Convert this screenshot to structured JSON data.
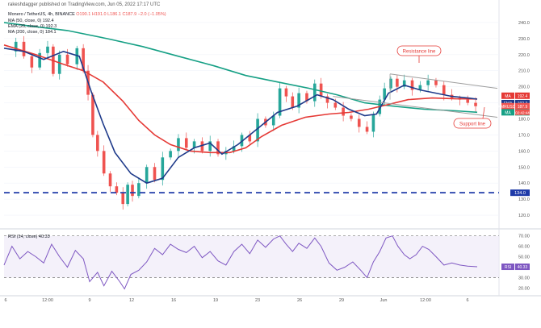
{
  "header": {
    "publisher": "rakeshdagger published on TradingView.com, Jun 05, 2022 17:17 UTC",
    "pair": "Monero / TetherUS, 4h, BINANCE",
    "ohlc": "O190.1 H191.0 L186.1 C187.9 −2.0 (−1.05%)",
    "indicators": [
      "MA (50, close, 0)  192.4",
      "EMA (20, close, 0)  192.3",
      "MA (200, close, 0)  184.1"
    ],
    "rsi_label": "RSI (14, close)  40.33"
  },
  "colors": {
    "up": "#26a69a",
    "down": "#ef5350",
    "ma50": "#e53935",
    "ema20": "#1e3a8a",
    "ma200": "#16a085",
    "rsi": "#7e57c2",
    "support": "#1e3aa8",
    "annotation": "#e53935",
    "triangle": "#9e9e9e"
  },
  "chart_data": [
    {
      "type": "candlestick",
      "title": "Monero / TetherUS, 4h, BINANCE",
      "x": [
        "6",
        "12:00",
        "9",
        "12",
        "16",
        "19",
        "23",
        "26",
        "29",
        "Jun",
        "12:00",
        "6"
      ],
      "y_ticks": [
        120.0,
        130.0,
        140.0,
        150.0,
        160.0,
        170.0,
        180.0,
        190.0,
        200.0,
        210.0,
        220.0,
        230.0,
        240.0
      ],
      "ylim": [
        112,
        248
      ],
      "price_labels": [
        {
          "name": "MA",
          "value": 192.4
        },
        {
          "name": "EMA",
          "value": 192.3
        },
        {
          "name": "XMRUSDT",
          "value": 187.9
        },
        {
          "name": "MA",
          "value": 184.1
        },
        {
          "name": "countdown",
          "value": "02:42:44"
        }
      ],
      "horizontal_line": {
        "label": "134.0",
        "value": 134.0
      },
      "annotations": [
        "Resistance line",
        "Support line"
      ],
      "series": [
        {
          "name": "MA (200)",
          "points": [
            [
              0,
              240
            ],
            [
              30,
              238
            ],
            [
              80,
              235
            ],
            [
              130,
              230
            ],
            [
              175,
              225
            ],
            [
              220,
              219
            ],
            [
              265,
              213
            ],
            [
              305,
              207
            ],
            [
              345,
              203
            ],
            [
              385,
              199
            ],
            [
              420,
              195
            ],
            [
              455,
              190
            ],
            [
              490,
              188
            ],
            [
              530,
              186
            ],
            [
              570,
              185
            ],
            [
              597,
              184.1
            ]
          ]
        },
        {
          "name": "MA (50)",
          "points": [
            [
              0,
              226
            ],
            [
              40,
              220
            ],
            [
              75,
              214
            ],
            [
              100,
              210
            ],
            [
              125,
              203
            ],
            [
              150,
              191
            ],
            [
              170,
              179
            ],
            [
              190,
              170
            ],
            [
              210,
              164
            ],
            [
              235,
              160
            ],
            [
              260,
              159
            ],
            [
              285,
              159
            ],
            [
              305,
              162
            ],
            [
              325,
              169
            ],
            [
              350,
              176
            ],
            [
              380,
              181
            ],
            [
              410,
              183
            ],
            [
              435,
              184
            ],
            [
              460,
              186
            ],
            [
              485,
              189
            ],
            [
              510,
              192
            ],
            [
              540,
              193
            ],
            [
              570,
              192.5
            ],
            [
              597,
              192.4
            ]
          ]
        },
        {
          "name": "EMA (20)",
          "points": [
            [
              0,
              224
            ],
            [
              25,
              222
            ],
            [
              50,
              217
            ],
            [
              75,
              222
            ],
            [
              95,
              219
            ],
            [
              110,
              197
            ],
            [
              125,
              177
            ],
            [
              140,
              159
            ],
            [
              160,
              146
            ],
            [
              180,
              140
            ],
            [
              200,
              143
            ],
            [
              220,
              156
            ],
            [
              240,
              162
            ],
            [
              260,
              165
            ],
            [
              275,
              158
            ],
            [
              295,
              164
            ],
            [
              320,
              174
            ],
            [
              345,
              184
            ],
            [
              370,
              188
            ],
            [
              395,
              195
            ],
            [
              415,
              192
            ],
            [
              435,
              186
            ],
            [
              455,
              182
            ],
            [
              470,
              183
            ],
            [
              485,
              196
            ],
            [
              505,
              201
            ],
            [
              525,
              198
            ],
            [
              545,
              196
            ],
            [
              565,
              194
            ],
            [
              585,
              193
            ],
            [
              597,
              192.3
            ]
          ]
        }
      ],
      "candles_approx": {
        "close_path": [
          [
            5,
            222
          ],
          [
            15,
            228
          ],
          [
            25,
            219
          ],
          [
            35,
            212
          ],
          [
            45,
            221
          ],
          [
            55,
            225
          ],
          [
            62,
            208
          ],
          [
            70,
            220
          ],
          [
            80,
            214
          ],
          [
            92,
            224
          ],
          [
            100,
            210
          ],
          [
            106,
            195
          ],
          [
            112,
            170
          ],
          [
            118,
            160
          ],
          [
            126,
            146
          ],
          [
            134,
            138
          ],
          [
            142,
            134
          ],
          [
            150,
            127
          ],
          [
            156,
            139
          ],
          [
            162,
            132
          ],
          [
            170,
            140
          ],
          [
            180,
            150
          ],
          [
            190,
            142
          ],
          [
            200,
            156
          ],
          [
            210,
            160
          ],
          [
            220,
            168
          ],
          [
            230,
            162
          ],
          [
            240,
            166
          ],
          [
            250,
            160
          ],
          [
            260,
            166
          ],
          [
            270,
            158
          ],
          [
            280,
            160
          ],
          [
            290,
            163
          ],
          [
            300,
            170
          ],
          [
            310,
            166
          ],
          [
            320,
            180
          ],
          [
            330,
            176
          ],
          [
            340,
            182
          ],
          [
            348,
            199
          ],
          [
            356,
            194
          ],
          [
            364,
            187
          ],
          [
            372,
            196
          ],
          [
            382,
            191
          ],
          [
            392,
            202
          ],
          [
            400,
            194
          ],
          [
            408,
            190
          ],
          [
            418,
            187
          ],
          [
            428,
            182
          ],
          [
            438,
            180
          ],
          [
            448,
            175
          ],
          [
            458,
            172
          ],
          [
            466,
            183
          ],
          [
            474,
            192
          ],
          [
            480,
            199
          ],
          [
            488,
            205
          ],
          [
            496,
            200
          ],
          [
            505,
            204
          ],
          [
            515,
            198
          ],
          [
            525,
            201
          ],
          [
            535,
            204
          ],
          [
            545,
            201
          ],
          [
            555,
            195
          ],
          [
            565,
            193
          ],
          [
            575,
            192
          ],
          [
            585,
            190
          ],
          [
            595,
            187.9
          ]
        ]
      },
      "trendlines": {
        "resistance": [
          [
            487,
            208
          ],
          [
            617,
            199
          ]
        ],
        "support": [
          [
            415,
            194
          ],
          [
            617,
            181
          ]
        ]
      }
    },
    {
      "type": "line",
      "title": "RSI (14, close)",
      "y_ticks": [
        20.0,
        30.0,
        40.0,
        50.0,
        60.0,
        70.0
      ],
      "ylim": [
        14,
        76
      ],
      "value": 40.33,
      "bands": [
        30,
        70
      ],
      "points": [
        [
          0,
          42
        ],
        [
          10,
          60
        ],
        [
          20,
          48
        ],
        [
          30,
          55
        ],
        [
          40,
          50
        ],
        [
          50,
          44
        ],
        [
          60,
          62
        ],
        [
          70,
          50
        ],
        [
          80,
          40
        ],
        [
          90,
          56
        ],
        [
          100,
          48
        ],
        [
          108,
          26
        ],
        [
          118,
          35
        ],
        [
          126,
          22
        ],
        [
          136,
          36
        ],
        [
          146,
          26
        ],
        [
          152,
          19
        ],
        [
          160,
          33
        ],
        [
          170,
          37
        ],
        [
          180,
          45
        ],
        [
          190,
          58
        ],
        [
          200,
          52
        ],
        [
          210,
          62
        ],
        [
          220,
          57
        ],
        [
          230,
          54
        ],
        [
          240,
          60
        ],
        [
          250,
          49
        ],
        [
          260,
          55
        ],
        [
          270,
          46
        ],
        [
          280,
          42
        ],
        [
          290,
          55
        ],
        [
          300,
          62
        ],
        [
          310,
          53
        ],
        [
          320,
          66
        ],
        [
          330,
          59
        ],
        [
          340,
          67
        ],
        [
          348,
          70
        ],
        [
          356,
          62
        ],
        [
          364,
          55
        ],
        [
          372,
          63
        ],
        [
          382,
          58
        ],
        [
          392,
          68
        ],
        [
          400,
          60
        ],
        [
          410,
          44
        ],
        [
          420,
          37
        ],
        [
          430,
          40
        ],
        [
          440,
          45
        ],
        [
          450,
          37
        ],
        [
          458,
          30
        ],
        [
          466,
          45
        ],
        [
          474,
          55
        ],
        [
          482,
          68
        ],
        [
          490,
          70
        ],
        [
          497,
          60
        ],
        [
          505,
          52
        ],
        [
          512,
          48
        ],
        [
          520,
          52
        ],
        [
          528,
          60
        ],
        [
          536,
          57
        ],
        [
          545,
          50
        ],
        [
          555,
          42
        ],
        [
          565,
          44
        ],
        [
          575,
          42
        ],
        [
          585,
          41
        ],
        [
          597,
          40.33
        ]
      ]
    }
  ]
}
